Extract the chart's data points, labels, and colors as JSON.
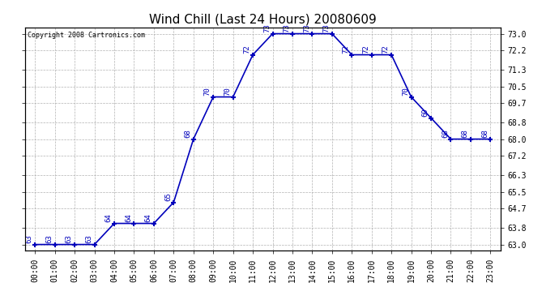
{
  "title": "Wind Chill (Last 24 Hours) 20080609",
  "copyright": "Copyright 2008 Cartronics.com",
  "hours": [
    "00:00",
    "01:00",
    "02:00",
    "03:00",
    "04:00",
    "05:00",
    "06:00",
    "07:00",
    "08:00",
    "09:00",
    "10:00",
    "11:00",
    "12:00",
    "13:00",
    "14:00",
    "15:00",
    "16:00",
    "17:00",
    "18:00",
    "19:00",
    "20:00",
    "21:00",
    "22:00",
    "23:00"
  ],
  "values": [
    63,
    63,
    63,
    63,
    64,
    64,
    64,
    65,
    68,
    70,
    70,
    72,
    73,
    73,
    73,
    73,
    72,
    72,
    72,
    70,
    69,
    68,
    68,
    68
  ],
  "yticks": [
    63.0,
    63.8,
    64.7,
    65.5,
    66.3,
    67.2,
    68.0,
    68.8,
    69.7,
    70.5,
    71.3,
    72.2,
    73.0
  ],
  "ylim": [
    62.7,
    73.3
  ],
  "line_color": "#0000bb",
  "marker_color": "#0000bb",
  "bg_color": "#ffffff",
  "plot_bg_color": "#ffffff",
  "grid_color": "#aaaaaa",
  "title_fontsize": 11,
  "tick_fontsize": 7,
  "annotation_fontsize": 6.5,
  "copyright_fontsize": 6
}
